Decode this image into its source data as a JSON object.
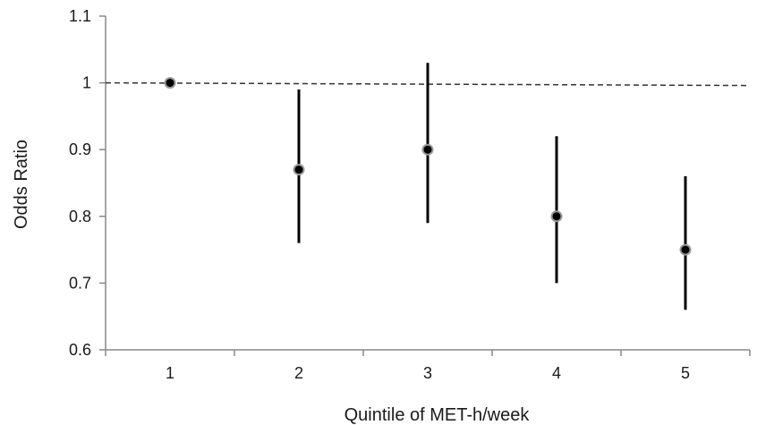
{
  "chart_data": {
    "type": "scatter",
    "title": "",
    "xlabel": "Quintile of MET-h/week",
    "ylabel": "Odds Ratio",
    "categories": [
      "1",
      "2",
      "3",
      "4",
      "5"
    ],
    "ylim": [
      0.6,
      1.1
    ],
    "yticks": [
      "0.6",
      "0.7",
      "0.8",
      "0.9",
      "1",
      "1.1"
    ],
    "reference_line": {
      "y": 1.0,
      "style": "dashed"
    },
    "series": [
      {
        "values": [
          1.0,
          0.87,
          0.9,
          0.8,
          0.75
        ],
        "ci_lower": [
          1.0,
          0.76,
          0.79,
          0.7,
          0.66
        ],
        "ci_upper": [
          1.0,
          0.99,
          1.03,
          0.92,
          0.86
        ]
      }
    ],
    "grid": false,
    "colors": {
      "axis": "#888888",
      "marker_fill": "#000000",
      "marker_edge": "#999999",
      "error_bar": "#000000",
      "reference_line": "#333333"
    }
  }
}
